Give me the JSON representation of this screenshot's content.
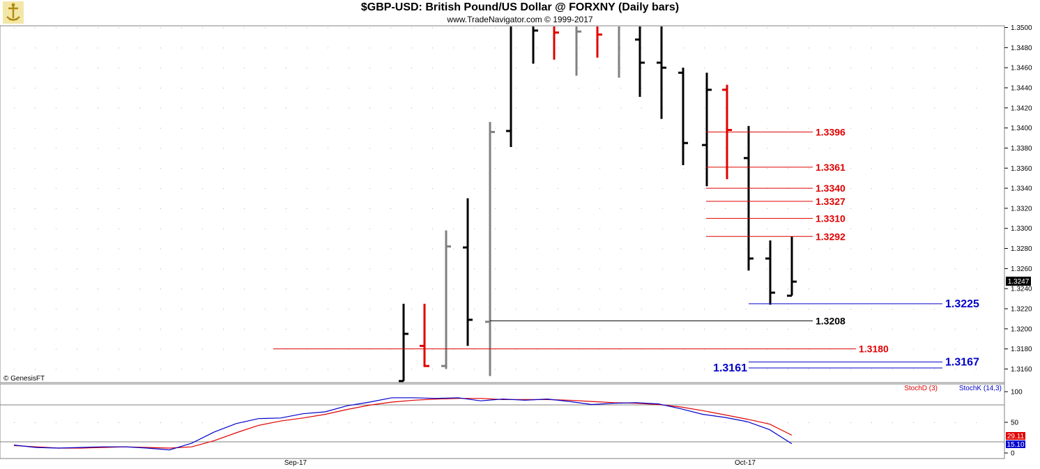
{
  "header": {
    "title": "$GBP-USD:  British Pound/US Dollar @ FORXNY  (Daily bars)",
    "subtitle": "www.TradeNavigator.com © 1999-2017",
    "watermark": "© GenesisFT"
  },
  "colors": {
    "up_bar": "#000000",
    "down_bar": "#e00000",
    "neutral_bar": "#808080",
    "stoch_k": "#0000cc",
    "stoch_d": "#e00000",
    "grid_dot": "#b0b0b0"
  },
  "chart_data": [
    {
      "type": "ohlc",
      "y_axis_ticks": [
        "1.3160",
        "1.3180",
        "1.3200",
        "1.3220",
        "1.3240",
        "1.3260",
        "1.3280",
        "1.3300",
        "1.3320",
        "1.3340",
        "1.3360",
        "1.3380",
        "1.3400",
        "1.3420",
        "1.3440",
        "1.3460",
        "1.3480",
        "1.3500"
      ],
      "ylim": [
        1.3148,
        1.351
      ],
      "last_price_label": "1.3247",
      "x_labels": [
        "Sep-17",
        "Oct-17"
      ],
      "bars": [
        {
          "o": 1.3148,
          "h": 1.3225,
          "l": 1.3148,
          "c": 1.3195,
          "color": "black"
        },
        {
          "o": 1.3183,
          "h": 1.3225,
          "l": 1.3162,
          "c": 1.3163,
          "color": "red"
        },
        {
          "o": 1.3163,
          "h": 1.3298,
          "l": 1.316,
          "c": 1.3282,
          "color": "gray"
        },
        {
          "o": 1.3281,
          "h": 1.333,
          "l": 1.3183,
          "c": 1.3209,
          "color": "black"
        },
        {
          "o": 1.3207,
          "h": 1.3406,
          "l": 1.3153,
          "c": 1.3396,
          "color": "gray"
        },
        {
          "o": 1.3397,
          "h": 1.351,
          "l": 1.3381,
          "c": 1.351,
          "color": "black"
        },
        {
          "o": 1.351,
          "h": 1.351,
          "l": 1.3464,
          "c": 1.3497,
          "color": "black"
        },
        {
          "o": 1.351,
          "h": 1.351,
          "l": 1.3468,
          "c": 1.3495,
          "color": "red"
        },
        {
          "o": 1.351,
          "h": 1.351,
          "l": 1.3452,
          "c": 1.3496,
          "color": "gray"
        },
        {
          "o": 1.351,
          "h": 1.351,
          "l": 1.347,
          "c": 1.3493,
          "color": "red"
        },
        {
          "o": 1.351,
          "h": 1.351,
          "l": 1.345,
          "c": 1.351,
          "color": "gray"
        },
        {
          "o": 1.3488,
          "h": 1.351,
          "l": 1.3431,
          "c": 1.3465,
          "color": "black"
        },
        {
          "o": 1.3465,
          "h": 1.351,
          "l": 1.3409,
          "c": 1.346,
          "color": "black"
        },
        {
          "o": 1.3455,
          "h": 1.346,
          "l": 1.3363,
          "c": 1.3385,
          "color": "black"
        },
        {
          "o": 1.3383,
          "h": 1.3455,
          "l": 1.3342,
          "c": 1.3438,
          "color": "black"
        },
        {
          "o": 1.3438,
          "h": 1.3443,
          "l": 1.3349,
          "c": 1.3398,
          "color": "red"
        },
        {
          "o": 1.337,
          "h": 1.3402,
          "l": 1.3258,
          "c": 1.327,
          "color": "black"
        },
        {
          "o": 1.327,
          "h": 1.3288,
          "l": 1.3224,
          "c": 1.3236,
          "color": "black"
        },
        {
          "o": 1.3233,
          "h": 1.3292,
          "l": 1.3233,
          "c": 1.3247,
          "color": "black"
        }
      ],
      "levels": [
        {
          "label": "1.3396",
          "color": "red"
        },
        {
          "label": "1.3361",
          "color": "red"
        },
        {
          "label": "1.3340",
          "color": "red"
        },
        {
          "label": "1.3327",
          "color": "red"
        },
        {
          "label": "1.3310",
          "color": "red"
        },
        {
          "label": "1.3292",
          "color": "red"
        },
        {
          "label": "1.3225",
          "color": "blue"
        },
        {
          "label": "1.3208",
          "color": "black"
        },
        {
          "label": "1.3180",
          "color": "red"
        },
        {
          "label": "1.3167",
          "color": "blue"
        },
        {
          "label": "1.3161",
          "color": "blue"
        }
      ]
    },
    {
      "type": "line",
      "y_axis_ticks": [
        "100",
        "50",
        "0"
      ],
      "ylim": [
        0,
        100
      ],
      "reference_levels": [
        80,
        20
      ],
      "series": [
        {
          "name": "StochD (3)",
          "values": [
            12,
            10,
            8,
            8,
            9,
            10,
            9,
            8,
            10,
            20,
            33,
            45,
            52,
            57,
            63,
            71,
            78,
            83,
            86,
            88,
            89,
            89,
            87,
            87,
            87,
            86,
            84,
            82,
            81,
            79,
            75,
            69,
            62,
            55,
            47,
            29
          ]
        },
        {
          "name": "StochK (14,3)",
          "values": [
            13,
            9,
            8,
            9,
            10,
            10,
            8,
            5,
            16,
            34,
            48,
            56,
            57,
            64,
            67,
            77,
            83,
            90,
            90,
            89,
            90,
            85,
            88,
            86,
            88,
            84,
            79,
            81,
            82,
            80,
            72,
            63,
            58,
            51,
            38,
            15
          ]
        }
      ],
      "last_labels": {
        "d": "29.11",
        "k": "15.10"
      }
    }
  ]
}
